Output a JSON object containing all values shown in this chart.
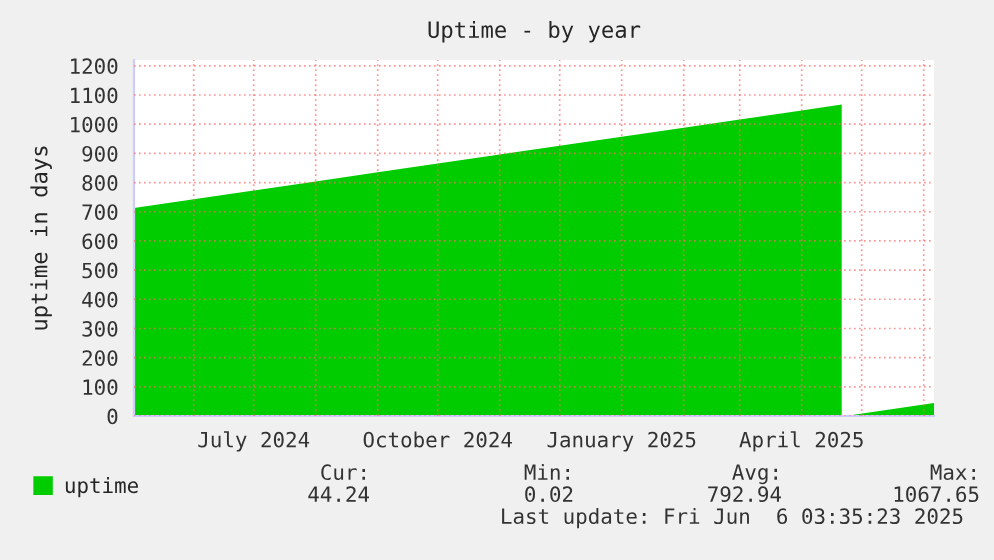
{
  "chart_data": {
    "type": "area",
    "title": "Uptime - by year",
    "ylabel": "uptime in days",
    "xlim": [
      "2024-05-02T03:35",
      "2025-06-06T03:35"
    ],
    "xticks": [
      {
        "value": "2024-06-01",
        "label": null
      },
      {
        "value": "2024-07-01",
        "label": "July 2024"
      },
      {
        "value": "2024-08-01",
        "label": null
      },
      {
        "value": "2024-09-01",
        "label": null
      },
      {
        "value": "2024-10-01",
        "label": "October 2024"
      },
      {
        "value": "2024-11-01",
        "label": null
      },
      {
        "value": "2024-12-01",
        "label": null
      },
      {
        "value": "2025-01-01",
        "label": "January 2025"
      },
      {
        "value": "2025-02-01",
        "label": null
      },
      {
        "value": "2025-03-01",
        "label": null
      },
      {
        "value": "2025-04-01",
        "label": "April 2025"
      },
      {
        "value": "2025-05-01",
        "label": null
      },
      {
        "value": "2025-06-01",
        "label": null
      }
    ],
    "ylim": [
      0,
      1220
    ],
    "yticks": [
      0,
      100,
      200,
      300,
      400,
      500,
      600,
      700,
      800,
      900,
      1000,
      1100,
      1200
    ],
    "grid": true,
    "legend": "bottom left",
    "x": [
      "2024-05-02T03:35",
      "2024-06-01",
      "2024-07-01",
      "2024-08-01",
      "2024-09-01",
      "2024-10-01",
      "2024-11-01",
      "2024-12-01",
      "2025-01-01",
      "2025-02-01",
      "2025-03-01",
      "2025-04-01",
      "2025-04-21",
      "2025-04-22",
      "2025-04-27",
      "2025-05-15",
      "2025-06-06T03:35"
    ],
    "series": [
      {
        "name": "uptime",
        "color": "#00cc00",
        "values": [
          713,
          743,
          773,
          804,
          835,
          865,
          896,
          926,
          957,
          988,
          1016,
          1047,
          1067.65,
          null,
          4,
          22,
          44.24
        ]
      }
    ],
    "annotations": [
      "Cur:",
      "44.24",
      "Min:",
      "0.02",
      "Avg:",
      "792.94",
      "Max:",
      "1067.65",
      "Last update: Fri Jun  6 03:35:23 2025"
    ]
  }
}
